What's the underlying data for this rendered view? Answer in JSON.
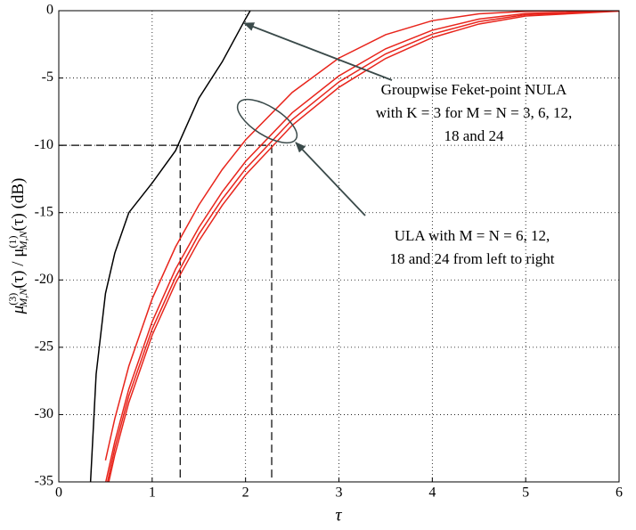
{
  "chart_data": {
    "type": "line",
    "xlabel": "τ",
    "ylabel": [
      "μ",
      "(3)",
      "M,N",
      "(τ) / μ",
      "(1)",
      "M,N",
      "(τ)   (dB)"
    ],
    "xlim": [
      0,
      6
    ],
    "ylim": [
      -35,
      0
    ],
    "xticks": [
      0,
      1,
      2,
      3,
      4,
      5,
      6
    ],
    "yticks": [
      -35,
      -30,
      -25,
      -20,
      -15,
      -10,
      -5,
      0
    ],
    "grid": true,
    "series": [
      {
        "color": "#000000",
        "x": [
          0.34,
          0.4,
          0.5,
          0.6,
          0.75,
          1,
          1.25,
          1.5,
          1.75,
          2,
          2.05
        ],
        "values": [
          -35,
          -27,
          -21,
          -18,
          -15,
          -12.8,
          -10.4,
          -6.5,
          -3.8,
          -0.6,
          0
        ]
      },
      {
        "color": "#e8251c",
        "x": [
          0.5,
          0.6,
          0.75,
          1,
          1.25,
          1.5,
          1.75,
          2,
          2.5,
          3,
          3.5,
          4,
          4.5,
          5,
          6
        ],
        "values": [
          -33.4,
          -30.3,
          -26.4,
          -21.4,
          -17.55,
          -14.43,
          -11.8,
          -9.6,
          -6.07,
          -3.52,
          -1.78,
          -0.74,
          -0.23,
          -0.05,
          0
        ]
      },
      {
        "color": "#e8251c",
        "x": [
          0.5,
          0.6,
          0.75,
          1,
          1.25,
          1.5,
          1.75,
          2,
          2.5,
          3,
          3.5,
          4,
          4.5,
          5,
          6
        ],
        "values": [
          -35.1,
          -32,
          -28.1,
          -23.1,
          -19.2,
          -16.1,
          -13.46,
          -11.2,
          -7.58,
          -4.84,
          -2.83,
          -1.45,
          -0.62,
          -0.21,
          -0.01
        ]
      },
      {
        "color": "#e8251c",
        "x": [
          0.5,
          0.6,
          0.75,
          1,
          1.25,
          1.5,
          1.75,
          2,
          2.5,
          3,
          3.5,
          4,
          4.5,
          5,
          6
        ],
        "values": [
          -35.7,
          -32.5,
          -28.6,
          -23.65,
          -19.8,
          -16.6,
          -14,
          -11.75,
          -8.09,
          -5.29,
          -3.21,
          -1.74,
          -0.81,
          -0.3,
          -0.02
        ]
      },
      {
        "color": "#e8251c",
        "x": [
          0.5,
          0.6,
          0.75,
          1,
          1.25,
          1.5,
          1.75,
          2,
          2.5,
          3,
          3.5,
          4,
          4.5,
          5,
          6
        ],
        "values": [
          -36.1,
          -33,
          -29.1,
          -24.1,
          -20.25,
          -17.1,
          -14.46,
          -12.2,
          -8.51,
          -5.69,
          -3.55,
          -2,
          -0.99,
          -0.4,
          -0.03
        ]
      }
    ],
    "reference_lines": {
      "y": -10,
      "x": [
        1.3,
        2.28
      ]
    },
    "annotations": [
      {
        "lines": [
          "Groupwise Feket-point NULA",
          "with K = 3 for M = N = 3, 6, 12,",
          "18 and 24"
        ]
      },
      {
        "lines": [
          "ULA with M = N = 6, 12,",
          "18 and 24 from left to right"
        ]
      }
    ]
  }
}
